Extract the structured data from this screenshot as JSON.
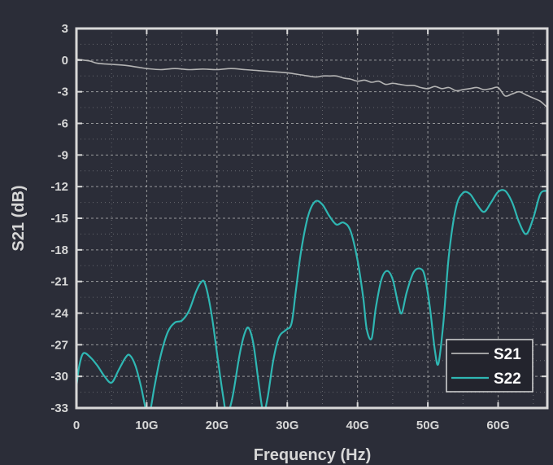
{
  "chart_data": {
    "type": "line",
    "xlabel": "Frequency (Hz)",
    "ylabel": "S21 (dB)",
    "xlim": [
      0,
      67
    ],
    "ylim": [
      -33,
      3
    ],
    "grid": true,
    "legend_position": "bottom-right",
    "x_ticks": [
      {
        "value": 0,
        "label": "0"
      },
      {
        "value": 10,
        "label": "10G"
      },
      {
        "value": 20,
        "label": "20G"
      },
      {
        "value": 30,
        "label": "30G"
      },
      {
        "value": 40,
        "label": "40G"
      },
      {
        "value": 50,
        "label": "50G"
      },
      {
        "value": 60,
        "label": "60G"
      }
    ],
    "y_ticks": [
      {
        "value": 3,
        "label": "3"
      },
      {
        "value": 0,
        "label": "0"
      },
      {
        "value": -3,
        "label": "-3"
      },
      {
        "value": -6,
        "label": "-6"
      },
      {
        "value": -9,
        "label": "-9"
      },
      {
        "value": -12,
        "label": "-12"
      },
      {
        "value": -15,
        "label": "-15"
      },
      {
        "value": -18,
        "label": "-18"
      },
      {
        "value": -21,
        "label": "-21"
      },
      {
        "value": -24,
        "label": "-24"
      },
      {
        "value": -27,
        "label": "-27"
      },
      {
        "value": -30,
        "label": "-30"
      },
      {
        "value": -33,
        "label": "-33"
      }
    ],
    "colors": {
      "background": "#2b2d38",
      "axes": "#d8d8d8",
      "grid": "#bdbdbd",
      "text": "#d7d7d7",
      "legend_bg": "#23242d"
    },
    "series": [
      {
        "name": "S21",
        "color": "#b4b4b4",
        "points": [
          [
            0,
            0.1
          ],
          [
            1,
            0.0
          ],
          [
            2,
            -0.1
          ],
          [
            3,
            -0.3
          ],
          [
            5,
            -0.4
          ],
          [
            7,
            -0.5
          ],
          [
            9,
            -0.7
          ],
          [
            10,
            -0.8
          ],
          [
            12,
            -0.9
          ],
          [
            14,
            -0.8
          ],
          [
            16,
            -0.9
          ],
          [
            18,
            -0.85
          ],
          [
            20,
            -0.9
          ],
          [
            22,
            -0.8
          ],
          [
            24,
            -0.9
          ],
          [
            26,
            -1.0
          ],
          [
            28,
            -1.1
          ],
          [
            30,
            -1.2
          ],
          [
            32,
            -1.4
          ],
          [
            34,
            -1.6
          ],
          [
            35,
            -1.5
          ],
          [
            36,
            -1.5
          ],
          [
            37,
            -1.5
          ],
          [
            38,
            -1.7
          ],
          [
            39,
            -1.8
          ],
          [
            40,
            -2.0
          ],
          [
            41,
            -1.9
          ],
          [
            42,
            -2.1
          ],
          [
            43,
            -2.0
          ],
          [
            44,
            -2.3
          ],
          [
            45,
            -2.2
          ],
          [
            46,
            -2.3
          ],
          [
            47,
            -2.4
          ],
          [
            48,
            -2.4
          ],
          [
            49,
            -2.6
          ],
          [
            50,
            -2.7
          ],
          [
            51,
            -2.5
          ],
          [
            52,
            -2.7
          ],
          [
            53,
            -2.6
          ],
          [
            54,
            -2.9
          ],
          [
            55,
            -2.8
          ],
          [
            56,
            -2.7
          ],
          [
            57,
            -2.6
          ],
          [
            58,
            -2.8
          ],
          [
            59,
            -2.7
          ],
          [
            60,
            -2.6
          ],
          [
            61,
            -3.4
          ],
          [
            62,
            -3.2
          ],
          [
            63,
            -3.0
          ],
          [
            64,
            -3.3
          ],
          [
            65,
            -3.6
          ],
          [
            66,
            -3.9
          ],
          [
            67,
            -4.5
          ]
        ]
      },
      {
        "name": "S22",
        "color": "#2fb7b3",
        "points": [
          [
            0,
            -31.0
          ],
          [
            0.4,
            -29.0
          ],
          [
            1,
            -27.8
          ],
          [
            2,
            -28.2
          ],
          [
            3,
            -29.0
          ],
          [
            4,
            -30.0
          ],
          [
            5,
            -30.6
          ],
          [
            6,
            -29.4
          ],
          [
            7,
            -28.2
          ],
          [
            7.6,
            -28.0
          ],
          [
            8.4,
            -29.0
          ],
          [
            9.2,
            -31.0
          ],
          [
            10,
            -33.5
          ],
          [
            10.4,
            -33.6
          ],
          [
            11.1,
            -31.0
          ],
          [
            12,
            -28.0
          ],
          [
            13,
            -25.8
          ],
          [
            14,
            -24.9
          ],
          [
            15,
            -24.7
          ],
          [
            16,
            -23.8
          ],
          [
            17,
            -22.0
          ],
          [
            17.7,
            -21.1
          ],
          [
            18.3,
            -21.2
          ],
          [
            19.2,
            -24.0
          ],
          [
            20.2,
            -28.8
          ],
          [
            20.9,
            -32.0
          ],
          [
            21.4,
            -33.6
          ],
          [
            22.2,
            -32.0
          ],
          [
            23.2,
            -28.0
          ],
          [
            23.9,
            -26.0
          ],
          [
            24.5,
            -25.4
          ],
          [
            25.2,
            -27.0
          ],
          [
            26.0,
            -31.0
          ],
          [
            26.6,
            -33.4
          ],
          [
            27.2,
            -32.0
          ],
          [
            28.0,
            -28.5
          ],
          [
            28.8,
            -26.3
          ],
          [
            29.8,
            -25.6
          ],
          [
            30.6,
            -25.0
          ],
          [
            31.2,
            -22.0
          ],
          [
            32.0,
            -18.0
          ],
          [
            33.0,
            -14.7
          ],
          [
            34.0,
            -13.4
          ],
          [
            35.0,
            -13.7
          ],
          [
            36.0,
            -14.8
          ],
          [
            37.0,
            -15.6
          ],
          [
            38.0,
            -15.4
          ],
          [
            39.0,
            -16.2
          ],
          [
            40.0,
            -19.0
          ],
          [
            40.8,
            -22.5
          ],
          [
            41.3,
            -25.5
          ],
          [
            42.0,
            -26.4
          ],
          [
            42.6,
            -23.5
          ],
          [
            43.4,
            -20.8
          ],
          [
            44.2,
            -20.0
          ],
          [
            45.0,
            -20.8
          ],
          [
            45.8,
            -23.2
          ],
          [
            46.3,
            -24.0
          ],
          [
            47.0,
            -22.0
          ],
          [
            48.0,
            -20.1
          ],
          [
            49.0,
            -19.8
          ],
          [
            49.6,
            -20.6
          ],
          [
            50.3,
            -23.5
          ],
          [
            51.0,
            -27.5
          ],
          [
            51.5,
            -28.8
          ],
          [
            52.2,
            -25.0
          ],
          [
            53.0,
            -18.5
          ],
          [
            54.0,
            -14.0
          ],
          [
            55.0,
            -12.6
          ],
          [
            56.0,
            -12.7
          ],
          [
            57.0,
            -13.7
          ],
          [
            58.0,
            -14.4
          ],
          [
            59.0,
            -13.5
          ],
          [
            60.0,
            -12.5
          ],
          [
            61.0,
            -12.4
          ],
          [
            62.0,
            -13.5
          ],
          [
            63.0,
            -15.4
          ],
          [
            64.0,
            -16.5
          ],
          [
            65.0,
            -15.0
          ],
          [
            66.0,
            -12.7
          ],
          [
            67.0,
            -12.4
          ]
        ]
      }
    ]
  }
}
